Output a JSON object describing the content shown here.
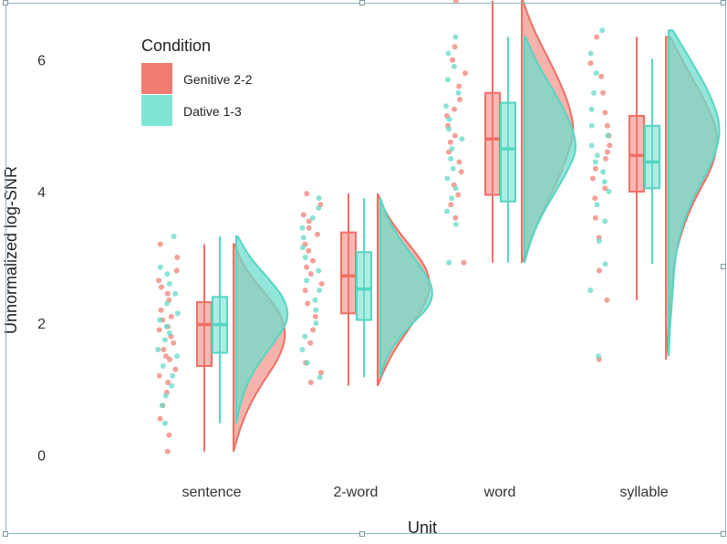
{
  "chart_data": {
    "type": "raincloud",
    "xlabel": "Unit",
    "ylabel": "Unnormalized log-SNR",
    "ylim": [
      -0.3,
      6.8
    ],
    "yticks": [
      0,
      2,
      4,
      6
    ],
    "categories": [
      "sentence",
      "2-word",
      "word",
      "syllable"
    ],
    "legend": {
      "title": "Condition",
      "position": "top-left",
      "entries": [
        "Genitive 2-2",
        "Dative 1-3"
      ]
    },
    "colors": {
      "Genitive 2-2": "#f07c72",
      "Dative 1-3": "#5fdcc8"
    },
    "grid": false,
    "series": [
      {
        "name": "Genitive 2-2",
        "box": [
          {
            "min": 0.05,
            "q1": 1.35,
            "median": 1.98,
            "q3": 2.32,
            "max": 3.2
          },
          {
            "min": 1.05,
            "q1": 2.15,
            "median": 2.72,
            "q3": 3.38,
            "max": 3.97
          },
          {
            "min": 2.92,
            "q1": 3.95,
            "median": 4.8,
            "q3": 5.5,
            "max": 6.9
          },
          {
            "min": 2.35,
            "q1": 4.0,
            "median": 4.55,
            "q3": 5.15,
            "max": 6.35
          }
        ],
        "points": [
          [
            0.05,
            0.3,
            0.55,
            0.75,
            0.95,
            1.1,
            1.2,
            1.3,
            1.45,
            1.5,
            1.6,
            1.7,
            1.8,
            1.9,
            1.95,
            2.05,
            2.1,
            2.2,
            2.35,
            2.45,
            2.55,
            2.65,
            2.8,
            3.0,
            3.2
          ],
          [
            1.1,
            1.25,
            1.4,
            1.7,
            1.9,
            2.1,
            2.3,
            2.5,
            2.6,
            2.75,
            2.85,
            2.95,
            3.1,
            3.2,
            3.35,
            3.45,
            3.55,
            3.65,
            3.8,
            3.97
          ],
          [
            2.92,
            3.6,
            3.8,
            3.95,
            4.1,
            4.3,
            4.45,
            4.6,
            4.75,
            4.85,
            5.0,
            5.15,
            5.25,
            5.4,
            5.6,
            5.8,
            6.0,
            6.2,
            6.9
          ],
          [
            1.45,
            2.35,
            2.8,
            3.3,
            3.6,
            3.9,
            4.05,
            4.2,
            4.35,
            4.5,
            4.6,
            4.7,
            4.85,
            5.0,
            5.2,
            5.5,
            5.75,
            5.95,
            6.35
          ]
        ],
        "density": [
          {
            "min": 0.05,
            "max": 3.2,
            "peak": 1.95,
            "profile": [
              0.0,
              0.12,
              0.3,
              0.55,
              0.85,
              1.0,
              0.9,
              0.55,
              0.2,
              0.02
            ]
          },
          {
            "min": 1.05,
            "max": 3.97,
            "peak": 2.8,
            "profile": [
              0.0,
              0.15,
              0.35,
              0.6,
              0.85,
              1.0,
              0.95,
              0.7,
              0.4,
              0.15,
              0.0
            ]
          },
          {
            "min": 2.92,
            "max": 6.9,
            "peak": 5.0,
            "profile": [
              0.0,
              0.2,
              0.4,
              0.65,
              0.85,
              1.0,
              0.9,
              0.7,
              0.45,
              0.2,
              0.02
            ]
          },
          {
            "min": 1.45,
            "max": 6.35,
            "peak": 4.5,
            "profile": [
              0.0,
              0.05,
              0.1,
              0.15,
              0.3,
              0.55,
              0.9,
              1.0,
              0.75,
              0.4,
              0.08
            ]
          }
        ]
      },
      {
        "name": "Dative 1-3",
        "box": [
          {
            "min": 0.48,
            "q1": 1.55,
            "median": 1.98,
            "q3": 2.4,
            "max": 3.32
          },
          {
            "min": 1.18,
            "q1": 2.05,
            "median": 2.52,
            "q3": 3.08,
            "max": 3.9
          },
          {
            "min": 2.92,
            "q1": 3.85,
            "median": 4.65,
            "q3": 5.35,
            "max": 6.35
          },
          {
            "min": 2.9,
            "q1": 4.05,
            "median": 4.45,
            "q3": 5.0,
            "max": 6.02
          }
        ],
        "points": [
          [
            0.48,
            0.75,
            0.9,
            1.05,
            1.2,
            1.35,
            1.5,
            1.6,
            1.75,
            1.85,
            1.95,
            2.05,
            2.15,
            2.3,
            2.45,
            2.6,
            2.75,
            2.85,
            3.32
          ],
          [
            1.18,
            1.4,
            1.6,
            1.8,
            2.0,
            2.2,
            2.35,
            2.5,
            2.65,
            2.8,
            3.0,
            3.15,
            3.3,
            3.45,
            3.6,
            3.75,
            3.9
          ],
          [
            2.92,
            3.5,
            3.7,
            3.9,
            4.05,
            4.2,
            4.35,
            4.5,
            4.65,
            4.8,
            4.95,
            5.1,
            5.3,
            5.5,
            5.7,
            5.9,
            6.1,
            6.35
          ],
          [
            1.5,
            2.5,
            2.9,
            3.25,
            3.55,
            3.8,
            4.0,
            4.15,
            4.3,
            4.45,
            4.55,
            4.7,
            4.85,
            5.0,
            5.25,
            5.5,
            5.8,
            6.1,
            6.45
          ]
        ],
        "density": [
          {
            "min": 0.48,
            "max": 3.32,
            "peak": 2.0,
            "profile": [
              0.0,
              0.08,
              0.22,
              0.45,
              0.75,
              1.0,
              0.92,
              0.6,
              0.25,
              0.03
            ]
          },
          {
            "min": 1.18,
            "max": 3.9,
            "peak": 2.45,
            "profile": [
              0.0,
              0.1,
              0.3,
              0.6,
              0.95,
              1.0,
              0.8,
              0.55,
              0.3,
              0.12,
              0.0
            ]
          },
          {
            "min": 2.92,
            "max": 6.35,
            "peak": 4.7,
            "profile": [
              0.0,
              0.12,
              0.3,
              0.55,
              0.8,
              1.0,
              0.9,
              0.7,
              0.45,
              0.2,
              0.02
            ]
          },
          {
            "min": 1.5,
            "max": 6.45,
            "peak": 4.5,
            "profile": [
              0.0,
              0.03,
              0.08,
              0.12,
              0.25,
              0.5,
              0.85,
              1.0,
              0.8,
              0.45,
              0.08
            ]
          }
        ]
      }
    ]
  }
}
